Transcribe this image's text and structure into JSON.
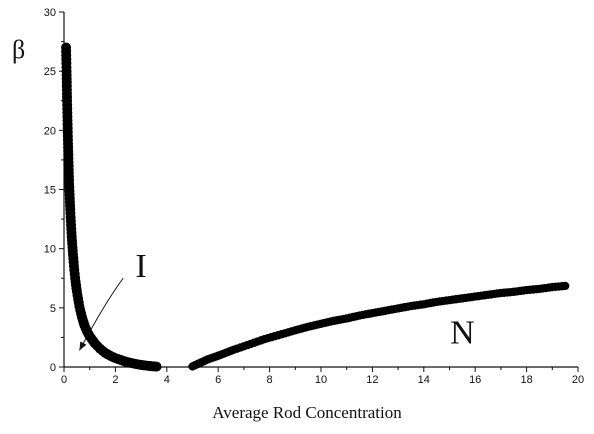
{
  "chart_data": {
    "type": "scatter",
    "title": "",
    "xlabel": "Average Rod Concentration",
    "ylabel": "β",
    "xlim": [
      0,
      20
    ],
    "ylim": [
      0,
      30
    ],
    "x_ticks": [
      0,
      2,
      4,
      6,
      8,
      10,
      12,
      14,
      16,
      18,
      20
    ],
    "y_ticks": [
      0,
      5,
      10,
      15,
      20,
      25,
      30
    ],
    "grid": false,
    "legend": "none",
    "marker_color": "#000000",
    "series": [
      {
        "x": [
          0.08,
          0.1,
          0.12,
          0.15,
          0.18,
          0.2,
          0.25,
          0.3,
          0.35,
          0.4,
          0.45,
          0.5,
          0.6,
          0.7,
          0.8,
          0.9,
          1.0,
          1.2,
          1.4,
          1.6,
          1.8,
          2.0,
          2.2,
          2.4,
          2.6,
          2.8,
          3.0,
          3.2,
          3.4,
          3.6
        ],
        "y": [
          27.0,
          25.0,
          22.5,
          19.5,
          17.0,
          15.5,
          13.0,
          11.0,
          9.5,
          8.2,
          7.2,
          6.4,
          5.1,
          4.2,
          3.5,
          3.0,
          2.6,
          2.0,
          1.55,
          1.2,
          0.95,
          0.75,
          0.6,
          0.45,
          0.35,
          0.25,
          0.18,
          0.12,
          0.07,
          0.03
        ]
      },
      {
        "x": [
          5.0,
          5.2,
          5.4,
          5.6,
          5.8,
          6.0,
          6.3,
          6.6,
          7.0,
          7.4,
          7.8,
          8.2,
          8.6,
          9.0,
          9.5,
          10.0,
          10.5,
          11.0,
          11.5,
          12.0,
          12.5,
          13.0,
          13.5,
          14.0,
          14.5,
          15.0,
          15.5,
          16.0,
          16.5,
          17.0,
          17.5,
          18.0,
          18.5,
          19.0,
          19.5
        ],
        "y": [
          0.05,
          0.25,
          0.45,
          0.65,
          0.8,
          0.95,
          1.2,
          1.45,
          1.75,
          2.05,
          2.35,
          2.6,
          2.85,
          3.1,
          3.4,
          3.65,
          3.9,
          4.1,
          4.35,
          4.55,
          4.75,
          4.95,
          5.15,
          5.3,
          5.5,
          5.65,
          5.8,
          5.95,
          6.1,
          6.25,
          6.35,
          6.5,
          6.6,
          6.75,
          6.85
        ]
      }
    ],
    "annotations": [
      {
        "text": "I",
        "x": 3.0,
        "y": 7.6
      },
      {
        "text": "N",
        "x": 15.5,
        "y": 2.0
      }
    ],
    "arrow": {
      "from": [
        2.3,
        7.5
      ],
      "to": [
        0.6,
        1.4
      ]
    }
  }
}
